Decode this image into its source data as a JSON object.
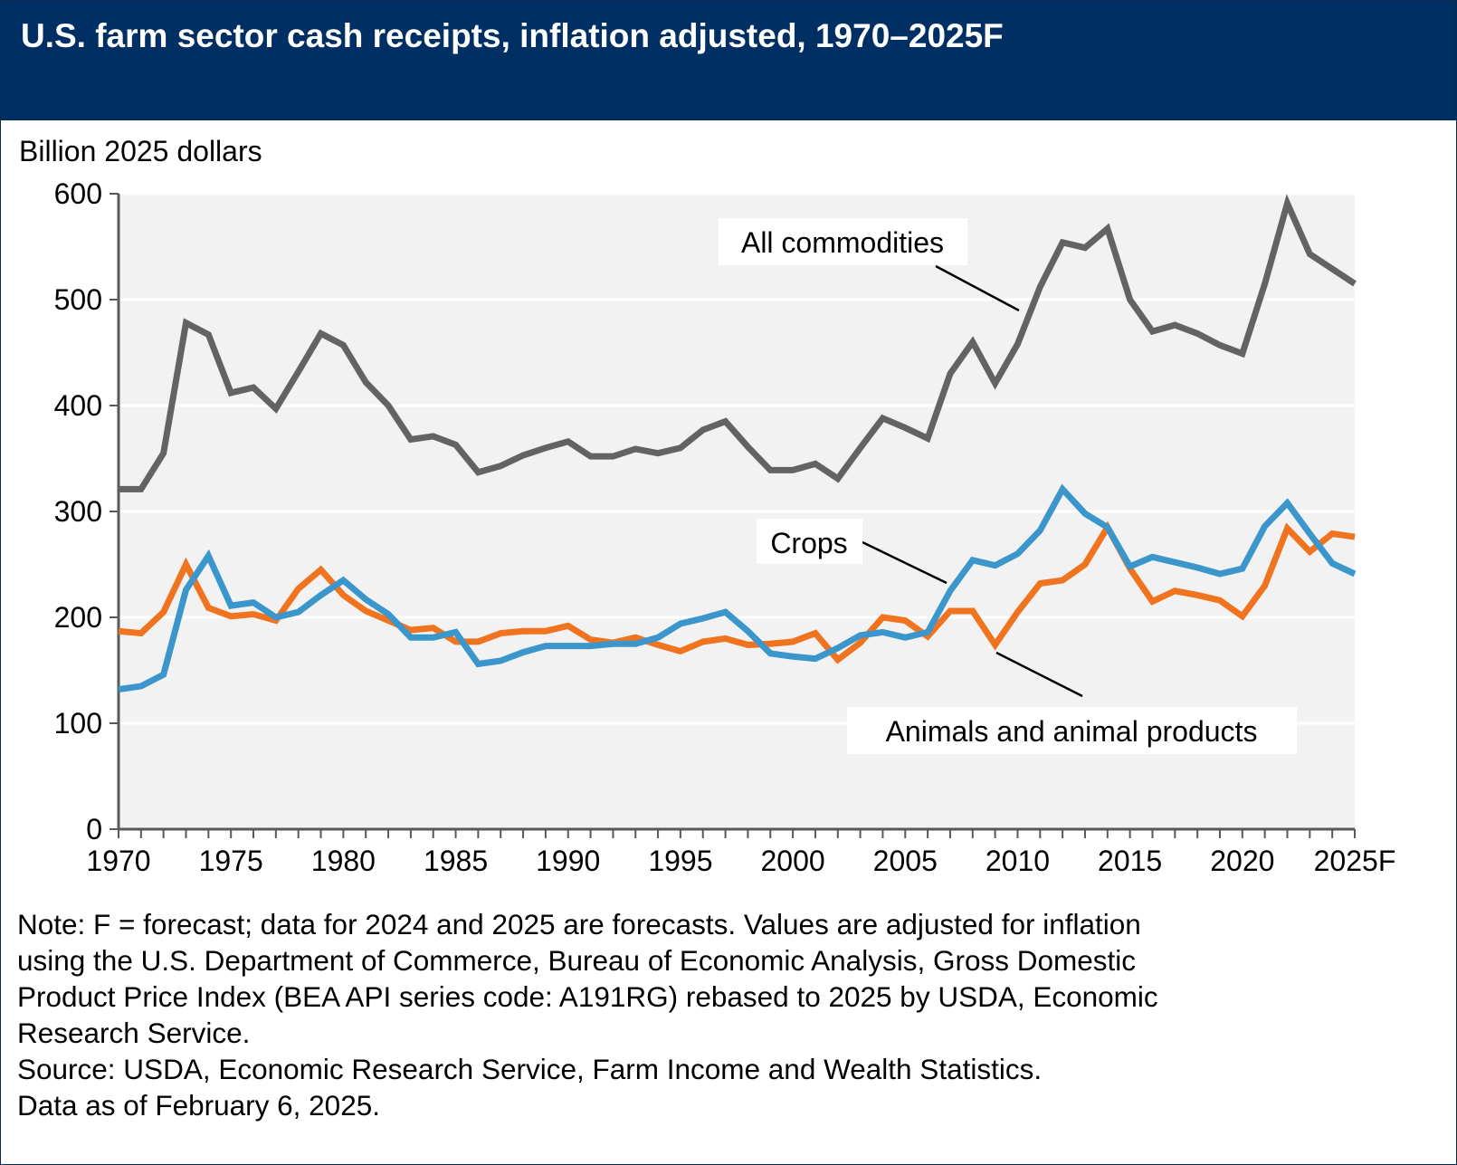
{
  "title": "U.S. farm sector cash receipts, inflation adjusted, 1970–2025F",
  "colors": {
    "header": "#003063",
    "all_commodities": "#636363",
    "crops": "#3b96cb",
    "animals": "#f0741f",
    "plot_bg": "#f2f2f2"
  },
  "notes": [
    "Note: F = forecast; data for 2024 and 2025 are forecasts. Values are adjusted for inflation",
    "using the U.S. Department of Commerce, Bureau of Economic Analysis, Gross Domestic",
    "Product Price Index (BEA API series code: A191RG) rebased to 2025 by USDA, Economic",
    "Research Service.",
    "Source: USDA, Economic Research Service, Farm Income and Wealth Statistics.",
    "Data as of February 6, 2025."
  ],
  "chart_data": {
    "type": "line",
    "title": "U.S. farm sector cash receipts, inflation adjusted, 1970–2025F",
    "ylabel": "Billion 2025 dollars",
    "xlabel": "",
    "ylim": [
      0,
      600
    ],
    "yticks": [
      "0",
      "100",
      "200",
      "300",
      "400",
      "500",
      "600"
    ],
    "xtick_labels": [
      "1970",
      "1975",
      "1980",
      "1985",
      "1990",
      "1995",
      "2000",
      "2005",
      "2010",
      "2015",
      "2020",
      "2025F"
    ],
    "grid": true,
    "x": [
      1970,
      1971,
      1972,
      1973,
      1974,
      1975,
      1976,
      1977,
      1978,
      1979,
      1980,
      1981,
      1982,
      1983,
      1984,
      1985,
      1986,
      1987,
      1988,
      1989,
      1990,
      1991,
      1992,
      1993,
      1994,
      1995,
      1996,
      1997,
      1998,
      1999,
      2000,
      2001,
      2002,
      2003,
      2004,
      2005,
      2006,
      2007,
      2008,
      2009,
      2010,
      2011,
      2012,
      2013,
      2014,
      2015,
      2016,
      2017,
      2018,
      2019,
      2020,
      2021,
      2022,
      2023,
      2024,
      2025
    ],
    "series": [
      {
        "name": "All commodities",
        "color": "#636363",
        "values": [
          321,
          321,
          355,
          478,
          467,
          412,
          417,
          397,
          432,
          468,
          457,
          422,
          400,
          368,
          371,
          363,
          337,
          343,
          353,
          360,
          366,
          352,
          352,
          359,
          355,
          360,
          377,
          385,
          361,
          339,
          339,
          345,
          331,
          360,
          388,
          379,
          369,
          430,
          460,
          421,
          458,
          512,
          554,
          549,
          567,
          500,
          470,
          476,
          468,
          457,
          449,
          515,
          591,
          543,
          529,
          515
        ]
      },
      {
        "name": "Crops",
        "color": "#3b96cb",
        "values": [
          132,
          135,
          146,
          226,
          258,
          211,
          214,
          200,
          205,
          221,
          235,
          217,
          203,
          181,
          181,
          186,
          156,
          159,
          167,
          173,
          173,
          173,
          175,
          175,
          181,
          194,
          199,
          205,
          187,
          166,
          163,
          161,
          171,
          183,
          186,
          181,
          186,
          225,
          254,
          249,
          260,
          282,
          321,
          298,
          285,
          248,
          257,
          252,
          247,
          241,
          246,
          286,
          308,
          279,
          251,
          241
        ]
      },
      {
        "name": "Animals and animal products",
        "color": "#f0741f",
        "values": [
          187,
          185,
          205,
          250,
          209,
          201,
          203,
          197,
          227,
          245,
          221,
          206,
          197,
          188,
          190,
          177,
          177,
          185,
          187,
          187,
          192,
          179,
          176,
          181,
          174,
          168,
          177,
          180,
          174,
          175,
          177,
          185,
          160,
          176,
          200,
          197,
          182,
          206,
          206,
          174,
          205,
          232,
          235,
          250,
          285,
          246,
          215,
          225,
          221,
          216,
          201,
          230,
          284,
          262,
          279,
          276
        ]
      }
    ]
  }
}
